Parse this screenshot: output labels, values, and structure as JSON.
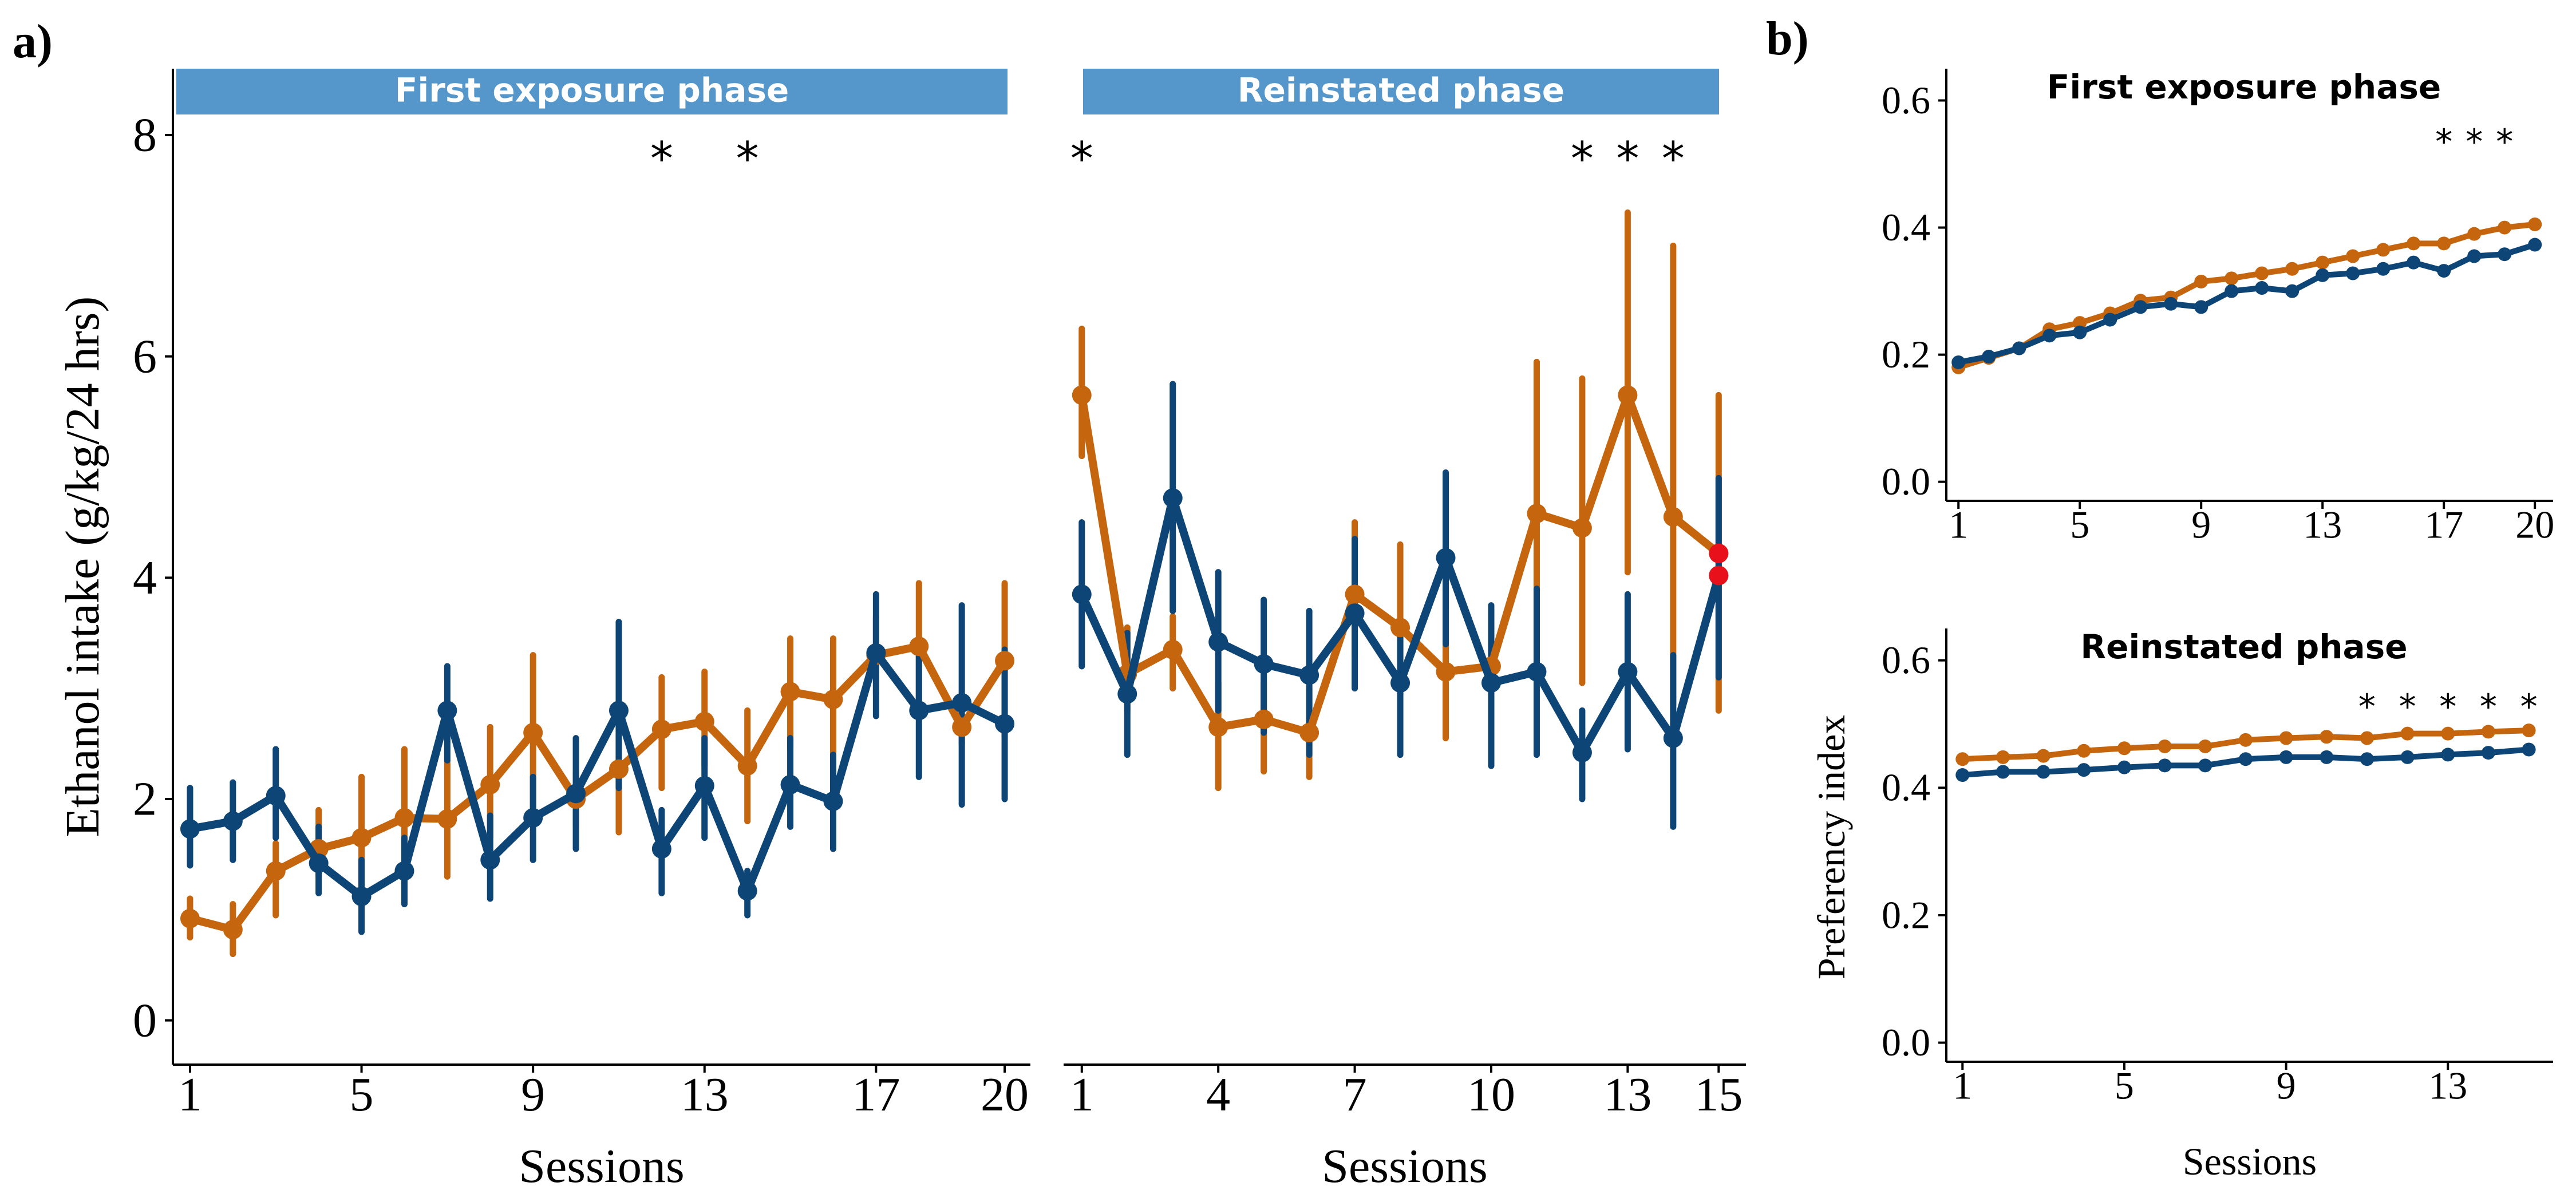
{
  "colors": {
    "orange": "#C5650E",
    "blue": "#0D4577",
    "red": "#E8101A",
    "strip": "#5597CB",
    "axis": "#000000"
  },
  "panels": {
    "a_label": "a)",
    "b_label": "b)"
  },
  "chart_data": [
    {
      "type": "line",
      "panel": "a-left",
      "strip_title": "First exposure phase",
      "xlabel": "Sessions",
      "ylabel": "Ethanol intake (g/kg/24 hrs)",
      "xlim": [
        0.6,
        20.6
      ],
      "ylim": [
        -0.4,
        8.6
      ],
      "xticks": [
        1,
        5,
        9,
        13,
        17,
        20
      ],
      "yticks": [
        0,
        2,
        4,
        6,
        8
      ],
      "x": [
        1,
        2,
        3,
        4,
        5,
        6,
        7,
        8,
        9,
        10,
        11,
        12,
        13,
        14,
        15,
        16,
        17,
        18,
        19,
        20
      ],
      "series": [
        {
          "color": "orange",
          "values": [
            0.92,
            0.82,
            1.35,
            1.55,
            1.65,
            1.83,
            1.82,
            2.13,
            2.6,
            2.0,
            2.27,
            2.63,
            2.7,
            2.3,
            2.97,
            2.9,
            3.3,
            3.38,
            2.65,
            3.25
          ],
          "err_low": [
            0.75,
            0.6,
            0.95,
            1.3,
            1.1,
            1.3,
            1.3,
            1.65,
            1.9,
            1.75,
            1.7,
            2.1,
            2.3,
            1.8,
            2.45,
            2.35,
            2.95,
            2.75,
            2.5,
            2.55
          ],
          "err_high": [
            1.1,
            1.05,
            1.6,
            1.9,
            2.2,
            2.45,
            2.35,
            2.65,
            3.3,
            2.25,
            2.75,
            3.1,
            3.15,
            2.8,
            3.45,
            3.45,
            3.65,
            3.95,
            2.95,
            3.95
          ]
        },
        {
          "color": "blue",
          "values": [
            1.73,
            1.8,
            2.03,
            1.42,
            1.12,
            1.35,
            2.8,
            1.45,
            1.83,
            2.05,
            2.8,
            1.55,
            2.12,
            1.17,
            2.13,
            1.98,
            3.32,
            2.8,
            2.87,
            2.68
          ],
          "err_low": [
            1.4,
            1.45,
            1.65,
            1.15,
            0.8,
            1.05,
            2.35,
            1.1,
            1.45,
            1.55,
            2.1,
            1.15,
            1.65,
            0.95,
            1.75,
            1.55,
            2.75,
            2.2,
            1.95,
            2.0
          ],
          "err_high": [
            2.1,
            2.15,
            2.45,
            1.75,
            1.45,
            1.65,
            3.2,
            1.85,
            2.2,
            2.55,
            3.6,
            1.9,
            2.55,
            1.35,
            2.55,
            2.4,
            3.85,
            3.4,
            3.75,
            3.35
          ]
        }
      ],
      "annotations": [
        {
          "x": 12,
          "text": "*"
        },
        {
          "x": 14,
          "text": "*"
        }
      ]
    },
    {
      "type": "line",
      "panel": "a-right",
      "strip_title": "Reinstated phase",
      "xlabel": "Sessions",
      "xlim": [
        0.6,
        15.6
      ],
      "ylim": [
        -0.4,
        8.6
      ],
      "xticks": [
        1,
        4,
        7,
        10,
        13,
        15
      ],
      "x": [
        1,
        2,
        3,
        4,
        5,
        6,
        7,
        8,
        9,
        10,
        11,
        12,
        13,
        14,
        15
      ],
      "series": [
        {
          "color": "orange",
          "values": [
            5.65,
            3.13,
            3.35,
            2.65,
            2.72,
            2.6,
            3.85,
            3.55,
            3.15,
            3.2,
            4.58,
            4.45,
            5.65,
            4.55,
            4.22
          ],
          "err_low": [
            5.1,
            2.8,
            3.0,
            2.1,
            2.25,
            2.2,
            3.3,
            2.95,
            2.55,
            2.8,
            3.1,
            3.05,
            4.05,
            2.85,
            2.8
          ],
          "err_high": [
            6.25,
            3.55,
            3.65,
            3.05,
            3.05,
            3.0,
            4.5,
            4.3,
            3.7,
            3.6,
            5.95,
            5.8,
            7.3,
            7.0,
            5.65
          ]
        },
        {
          "color": "blue",
          "values": [
            3.85,
            2.95,
            4.72,
            3.42,
            3.22,
            3.12,
            3.68,
            3.05,
            4.18,
            3.05,
            3.15,
            2.42,
            3.15,
            2.55,
            4.02
          ],
          "err_low": [
            3.2,
            2.4,
            3.7,
            2.8,
            2.6,
            2.4,
            3.0,
            2.4,
            3.4,
            2.3,
            2.4,
            2.0,
            2.45,
            1.75,
            3.1
          ],
          "err_high": [
            4.5,
            3.5,
            5.75,
            4.05,
            3.8,
            3.7,
            4.35,
            3.6,
            4.95,
            3.75,
            3.9,
            2.8,
            3.85,
            3.3,
            4.9
          ]
        }
      ],
      "highlight_points": [
        {
          "x": 15,
          "value": 4.22,
          "color": "red"
        },
        {
          "x": 15,
          "value": 4.02,
          "color": "red"
        }
      ],
      "annotations": [
        {
          "x": 1,
          "text": "*"
        },
        {
          "x": 12,
          "text": "*"
        },
        {
          "x": 13,
          "text": "*"
        },
        {
          "x": 14,
          "text": "*"
        }
      ]
    },
    {
      "type": "line",
      "panel": "b-top",
      "title": "First exposure phase",
      "xlim": [
        0.6,
        20.6
      ],
      "ylim": [
        -0.03,
        0.65
      ],
      "xticks": [
        1,
        5,
        9,
        13,
        17,
        20
      ],
      "yticks": [
        0.0,
        0.2,
        0.4,
        0.6
      ],
      "ytick_labels": [
        "0.0",
        "0.2",
        "0.4",
        "0.6"
      ],
      "x": [
        1,
        2,
        3,
        4,
        5,
        6,
        7,
        8,
        9,
        10,
        11,
        12,
        13,
        14,
        15,
        16,
        17,
        18,
        19,
        20
      ],
      "series": [
        {
          "color": "orange",
          "values": [
            0.18,
            0.195,
            0.21,
            0.24,
            0.25,
            0.265,
            0.285,
            0.29,
            0.315,
            0.32,
            0.328,
            0.335,
            0.345,
            0.355,
            0.365,
            0.375,
            0.375,
            0.39,
            0.4,
            0.405
          ]
        },
        {
          "color": "blue",
          "values": [
            0.188,
            0.197,
            0.21,
            0.23,
            0.235,
            0.255,
            0.275,
            0.28,
            0.275,
            0.3,
            0.305,
            0.3,
            0.325,
            0.328,
            0.335,
            0.345,
            0.332,
            0.355,
            0.358,
            0.373
          ]
        }
      ],
      "annotations": [
        {
          "x": 17,
          "text": "*"
        },
        {
          "x": 18,
          "text": "*"
        },
        {
          "x": 19,
          "text": "*"
        }
      ]
    },
    {
      "type": "line",
      "panel": "b-bottom",
      "title": "Reinstated phase",
      "xlabel": "Sessions",
      "ylabel": "Preferency index",
      "xlim": [
        0.6,
        15.6
      ],
      "ylim": [
        -0.03,
        0.65
      ],
      "xticks": [
        1,
        5,
        9,
        13
      ],
      "yticks": [
        0.0,
        0.2,
        0.4,
        0.6
      ],
      "ytick_labels": [
        "0.0",
        "0.2",
        "0.4",
        "0.6"
      ],
      "x": [
        1,
        2,
        3,
        4,
        5,
        6,
        7,
        8,
        9,
        10,
        11,
        12,
        13,
        14,
        15
      ],
      "series": [
        {
          "color": "orange",
          "values": [
            0.445,
            0.448,
            0.45,
            0.458,
            0.462,
            0.465,
            0.465,
            0.475,
            0.478,
            0.48,
            0.478,
            0.485,
            0.485,
            0.488,
            0.49
          ]
        },
        {
          "color": "blue",
          "values": [
            0.42,
            0.425,
            0.425,
            0.428,
            0.432,
            0.435,
            0.435,
            0.445,
            0.448,
            0.448,
            0.445,
            0.448,
            0.452,
            0.455,
            0.46
          ]
        }
      ],
      "annotations": [
        {
          "x": 11,
          "text": "*"
        },
        {
          "x": 12,
          "text": "*"
        },
        {
          "x": 13,
          "text": "*"
        },
        {
          "x": 14,
          "text": "*"
        },
        {
          "x": 15,
          "text": "*"
        }
      ]
    }
  ]
}
